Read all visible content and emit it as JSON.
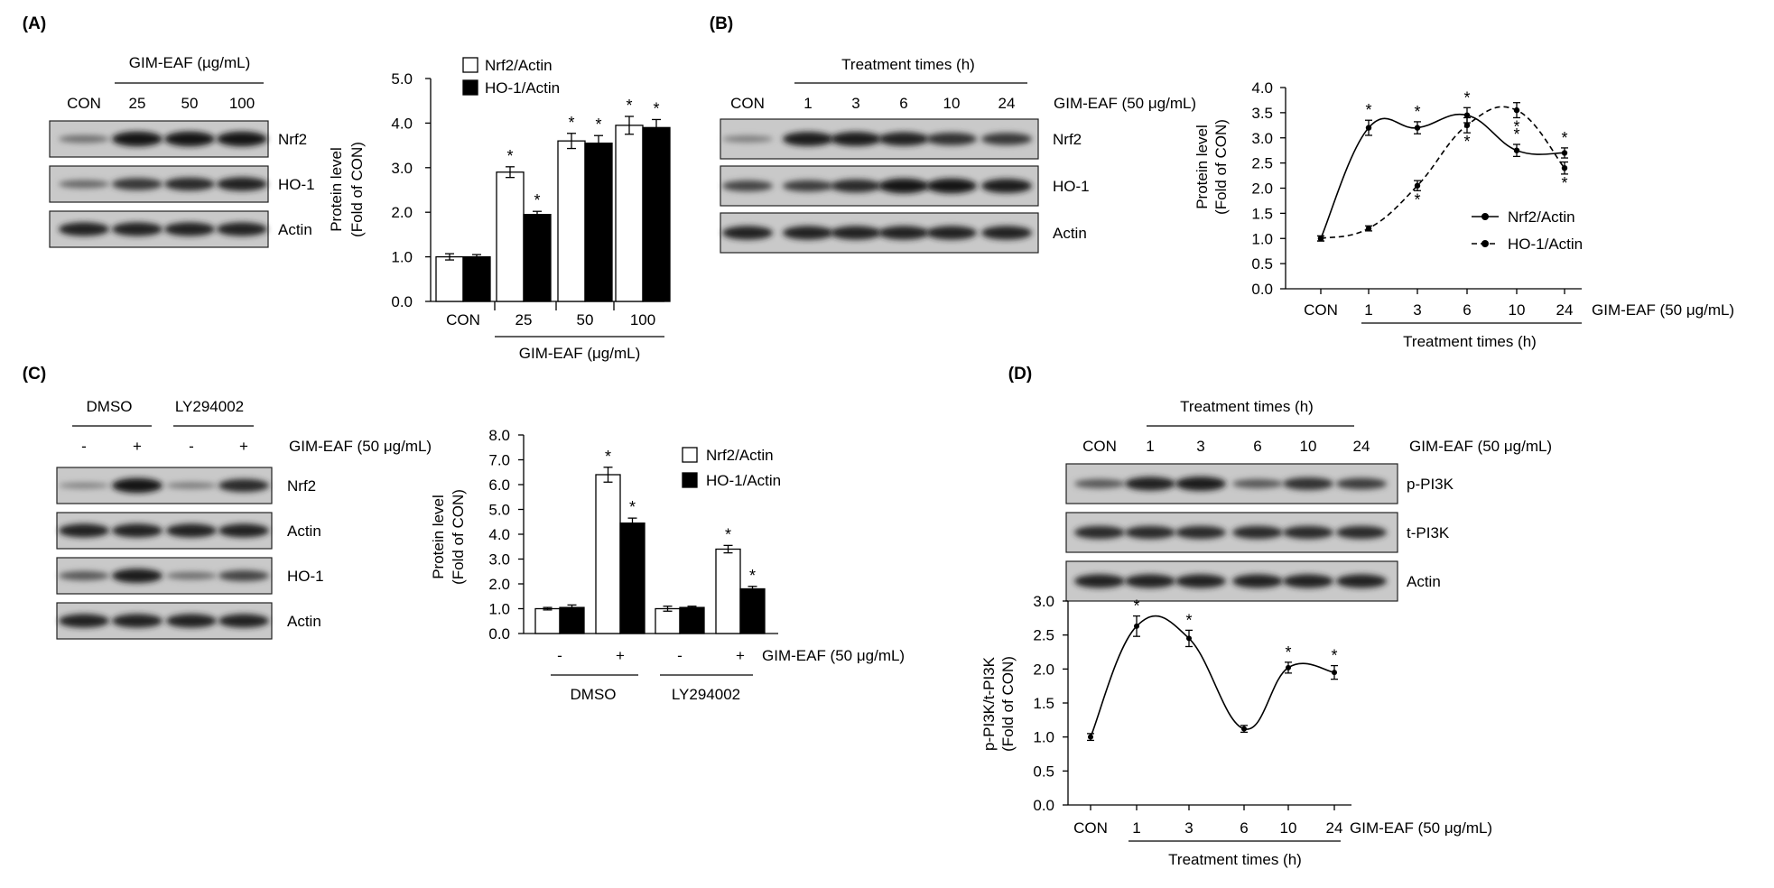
{
  "panels": [
    {
      "id": "A",
      "label": "(A)",
      "blot": {
        "treatment_header": "GIM-EAF (µg/mL)",
        "lanes": [
          "CON",
          "25",
          "50",
          "100"
        ],
        "rows": [
          {
            "name": "Nrf2",
            "intensity": [
              0.3,
              0.95,
              0.95,
              0.95
            ]
          },
          {
            "name": "HO-1",
            "intensity": [
              0.35,
              0.7,
              0.8,
              0.85
            ]
          },
          {
            "name": "Actin",
            "intensity": [
              0.85,
              0.85,
              0.85,
              0.85
            ]
          }
        ]
      },
      "chart_data": {
        "type": "bar",
        "ylabel_line1": "Protein level",
        "ylabel_line2": "(Fold of CON)",
        "categories": [
          "CON",
          "25",
          "50",
          "100"
        ],
        "group_label": "GIM-EAF (μg/mL)",
        "ylim": [
          0,
          5
        ],
        "yticks": [
          "0.0",
          "1.0",
          "2.0",
          "3.0",
          "4.0",
          "5.0"
        ],
        "ytick_values": [
          0,
          1,
          2,
          3,
          4,
          5
        ],
        "series": [
          {
            "name": "Nrf2/Actin",
            "fill": "#ffffff",
            "values": [
              1.0,
              2.9,
              3.6,
              3.95
            ],
            "errors": [
              0.07,
              0.12,
              0.17,
              0.2
            ],
            "sig": [
              false,
              true,
              true,
              true
            ]
          },
          {
            "name": "HO-1/Actin",
            "fill": "#000000",
            "values": [
              1.0,
              1.95,
              3.55,
              3.9
            ],
            "errors": [
              0.05,
              0.07,
              0.17,
              0.18
            ],
            "sig": [
              false,
              true,
              true,
              true
            ]
          }
        ],
        "sig_mark": "*"
      }
    },
    {
      "id": "B",
      "label": "(B)",
      "blot": {
        "treatment_header": "Treatment times (h)",
        "lanes": [
          "CON",
          "1",
          "3",
          "6",
          "10",
          "24"
        ],
        "condition_label": "GIM-EAF (50 μg/mL)",
        "rows": [
          {
            "name": "Nrf2",
            "intensity": [
              0.2,
              0.9,
              0.9,
              0.85,
              0.75,
              0.7
            ]
          },
          {
            "name": "HO-1",
            "intensity": [
              0.6,
              0.65,
              0.8,
              0.95,
              0.95,
              0.9
            ]
          },
          {
            "name": "Actin",
            "intensity": [
              0.85,
              0.85,
              0.85,
              0.85,
              0.85,
              0.85
            ]
          }
        ]
      },
      "chart_data": {
        "type": "line",
        "ylabel_line1": "Protein level",
        "ylabel_line2": "(Fold of CON)",
        "categories": [
          "CON",
          "1",
          "3",
          "6",
          "10",
          "24"
        ],
        "condition_label": "GIM-EAF (50 μg/mL)",
        "group_label": "Treatment times (h)",
        "ylim": [
          0,
          4
        ],
        "yticks": [
          "0.0",
          "0.5",
          "1.0",
          "1.5",
          "2.0",
          "2.5",
          "3.0",
          "3.5",
          "4.0"
        ],
        "ytick_values": [
          0,
          0.5,
          1,
          1.5,
          2,
          2.5,
          3,
          3.5,
          4
        ],
        "series": [
          {
            "name": "Nrf2/Actin",
            "style": "solid",
            "values": [
              1.0,
              3.2,
              3.2,
              3.45,
              2.75,
              2.7
            ],
            "errors": [
              0.05,
              0.15,
              0.12,
              0.15,
              0.12,
              0.1
            ],
            "sig": [
              false,
              true,
              true,
              true,
              true,
              true
            ]
          },
          {
            "name": "HO-1/Actin",
            "style": "dashed",
            "values": [
              1.0,
              1.2,
              2.05,
              3.25,
              3.55,
              2.4
            ],
            "errors": [
              0.05,
              0.05,
              0.1,
              0.15,
              0.15,
              0.12
            ],
            "sig": [
              false,
              false,
              true,
              true,
              true,
              true
            ]
          }
        ],
        "sig_mark": "*"
      }
    },
    {
      "id": "C",
      "label": "(C)",
      "blot": {
        "group_headers": [
          "DMSO",
          "LY294002"
        ],
        "lanes": [
          "-",
          "+",
          "-",
          "+"
        ],
        "condition_label": "GIM-EAF (50 μg/mL)",
        "rows": [
          {
            "name": "Nrf2",
            "intensity": [
              0.15,
              0.95,
              0.2,
              0.8
            ]
          },
          {
            "name": "Actin",
            "intensity": [
              0.85,
              0.85,
              0.85,
              0.85
            ]
          },
          {
            "name": "HO-1",
            "intensity": [
              0.45,
              0.9,
              0.3,
              0.6
            ]
          },
          {
            "name": "Actin",
            "intensity": [
              0.85,
              0.85,
              0.85,
              0.85
            ]
          }
        ]
      },
      "chart_data": {
        "type": "bar",
        "ylabel_line1": "Protein level",
        "ylabel_line2": "(Fold of CON)",
        "categories": [
          "-",
          "+",
          "-",
          "+"
        ],
        "condition_label": "GIM-EAF (50 μg/mL)",
        "groups": [
          "DMSO",
          "LY294002"
        ],
        "ylim": [
          0,
          8
        ],
        "yticks": [
          "0.0",
          "1.0",
          "2.0",
          "3.0",
          "4.0",
          "5.0",
          "6.0",
          "7.0",
          "8.0"
        ],
        "ytick_values": [
          0,
          1,
          2,
          3,
          4,
          5,
          6,
          7,
          8
        ],
        "series": [
          {
            "name": "Nrf2/Actin",
            "fill": "#ffffff",
            "values": [
              1.0,
              6.4,
              1.0,
              3.4
            ],
            "errors": [
              0.05,
              0.3,
              0.1,
              0.15
            ],
            "sig": [
              false,
              true,
              false,
              true
            ]
          },
          {
            "name": "HO-1/Actin",
            "fill": "#000000",
            "values": [
              1.05,
              4.45,
              1.05,
              1.8
            ],
            "errors": [
              0.1,
              0.2,
              0.05,
              0.1
            ],
            "sig": [
              false,
              true,
              false,
              true
            ]
          }
        ],
        "sig_mark": "*"
      }
    },
    {
      "id": "D",
      "label": "(D)",
      "blot": {
        "treatment_header": "Treatment times (h)",
        "lanes": [
          "CON",
          "1",
          "3",
          "6",
          "10",
          "24"
        ],
        "condition_label": "GIM-EAF (50 μg/mL)",
        "rows": [
          {
            "name": "p-PI3K",
            "intensity": [
              0.45,
              0.85,
              0.9,
              0.45,
              0.75,
              0.65
            ]
          },
          {
            "name": "t-PI3K",
            "intensity": [
              0.8,
              0.8,
              0.8,
              0.8,
              0.8,
              0.8
            ]
          },
          {
            "name": "Actin",
            "intensity": [
              0.85,
              0.85,
              0.85,
              0.85,
              0.85,
              0.85
            ]
          }
        ]
      },
      "chart_data": {
        "type": "line",
        "ylabel_line1": "p-PI3K/t-PI3K",
        "ylabel_line2": "(Fold of CON)",
        "categories": [
          "CON",
          "1",
          "3",
          "6",
          "10",
          "24"
        ],
        "condition_label": "GIM-EAF (50 μg/mL)",
        "group_label": "Treatment times (h)",
        "ylim": [
          0,
          3
        ],
        "yticks": [
          "0.0",
          "0.5",
          "1.0",
          "1.5",
          "2.0",
          "2.5",
          "3.0"
        ],
        "ytick_values": [
          0,
          0.5,
          1,
          1.5,
          2,
          2.5,
          3
        ],
        "series": [
          {
            "name": "p-PI3K/t-PI3K",
            "style": "solid",
            "values": [
              1.0,
              2.63,
              2.45,
              1.12,
              2.02,
              1.95
            ],
            "errors": [
              0.05,
              0.15,
              0.12,
              0.05,
              0.08,
              0.1
            ],
            "sig": [
              false,
              true,
              true,
              false,
              true,
              true
            ]
          }
        ],
        "sig_mark": "*"
      }
    }
  ]
}
